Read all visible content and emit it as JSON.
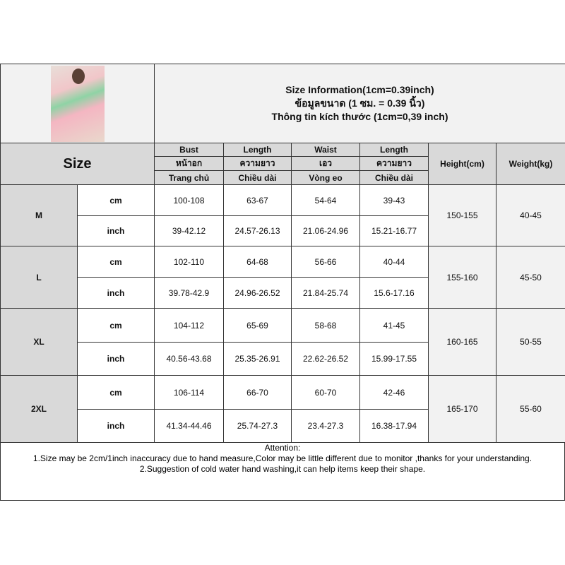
{
  "title": {
    "line1": "Size Information(1cm=0.39inch)",
    "line2": "ข้อมูลขนาด (1 ซม. = 0.39 นิ้ว)",
    "line3": "Thông tin kích thước (1cm=0,39 inch)"
  },
  "header": {
    "size": "Size",
    "cols": [
      {
        "en": "Bust",
        "th": "หน้าอก",
        "vi": "Trang chủ"
      },
      {
        "en": "Length",
        "th": "ความยาว",
        "vi": "Chiều dài"
      },
      {
        "en": "Waist",
        "th": "เอว",
        "vi": "Vòng eo"
      },
      {
        "en": "Length",
        "th": "ความยาว",
        "vi": "Chiều dài"
      }
    ],
    "height": "Height(cm)",
    "weight": "Weight(kg)"
  },
  "rows": [
    {
      "size": "M",
      "cm": [
        "100-108",
        "63-67",
        "54-64",
        "39-43"
      ],
      "inch": [
        "39-42.12",
        "24.57-26.13",
        "21.06-24.96",
        "15.21-16.77"
      ],
      "height": "150-155",
      "weight": "40-45"
    },
    {
      "size": "L",
      "cm": [
        "102-110",
        "64-68",
        "56-66",
        "40-44"
      ],
      "inch": [
        "39.78-42.9",
        "24.96-26.52",
        "21.84-25.74",
        "15.6-17.16"
      ],
      "height": "155-160",
      "weight": "45-50"
    },
    {
      "size": "XL",
      "cm": [
        "104-112",
        "65-69",
        "58-68",
        "41-45"
      ],
      "inch": [
        "40.56-43.68",
        "25.35-26.91",
        "22.62-26.52",
        "15.99-17.55"
      ],
      "height": "160-165",
      "weight": "50-55"
    },
    {
      "size": "2XL",
      "cm": [
        "106-114",
        "66-70",
        "60-70",
        "42-46"
      ],
      "inch": [
        "41.34-44.46",
        "25.74-27.3",
        "23.4-27.3",
        "16.38-17.94"
      ],
      "height": "165-170",
      "weight": "55-60"
    }
  ],
  "units": {
    "cm": "cm",
    "inch": "inch"
  },
  "notes": {
    "heading": "Attention:",
    "line1": "1.Size may be 2cm/1inch inaccuracy due to hand measure,Color may be little different due to monitor ,thanks for your understanding.",
    "line2": "2.Suggestion of cold water hand washing,it can help items keep their shape."
  }
}
